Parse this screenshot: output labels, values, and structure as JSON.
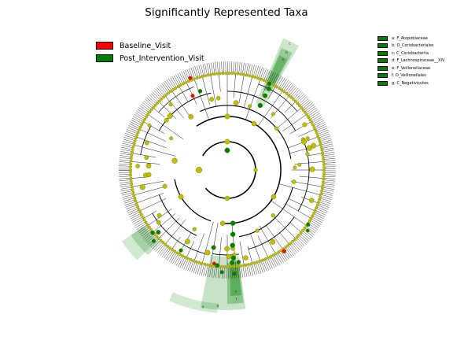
{
  "title": "Significantly Represented Taxa",
  "classes": [
    {
      "label": "Baseline_Visit",
      "color": "#ff0000"
    },
    {
      "label": "Post_Intervention_Visit",
      "color": "#008000"
    }
  ],
  "clades": [
    {
      "letter": "a",
      "label": "a: F_Atopobiaceae"
    },
    {
      "letter": "b",
      "label": "b: O_Coriobacteriales"
    },
    {
      "letter": "c",
      "label": "c: C_Coriobacteriia"
    },
    {
      "letter": "d",
      "label": "d: F_Lachnospiraceae__XIV"
    },
    {
      "letter": "e",
      "label": "e: F_Veillonellaceae"
    },
    {
      "letter": "f",
      "label": "f: O_Veillonellales"
    },
    {
      "letter": "g",
      "label": "g: C_Negativicutes"
    }
  ],
  "colors": {
    "node": "#bfbf00",
    "node_edge": "#6b6b00",
    "shade": "#008000"
  }
}
